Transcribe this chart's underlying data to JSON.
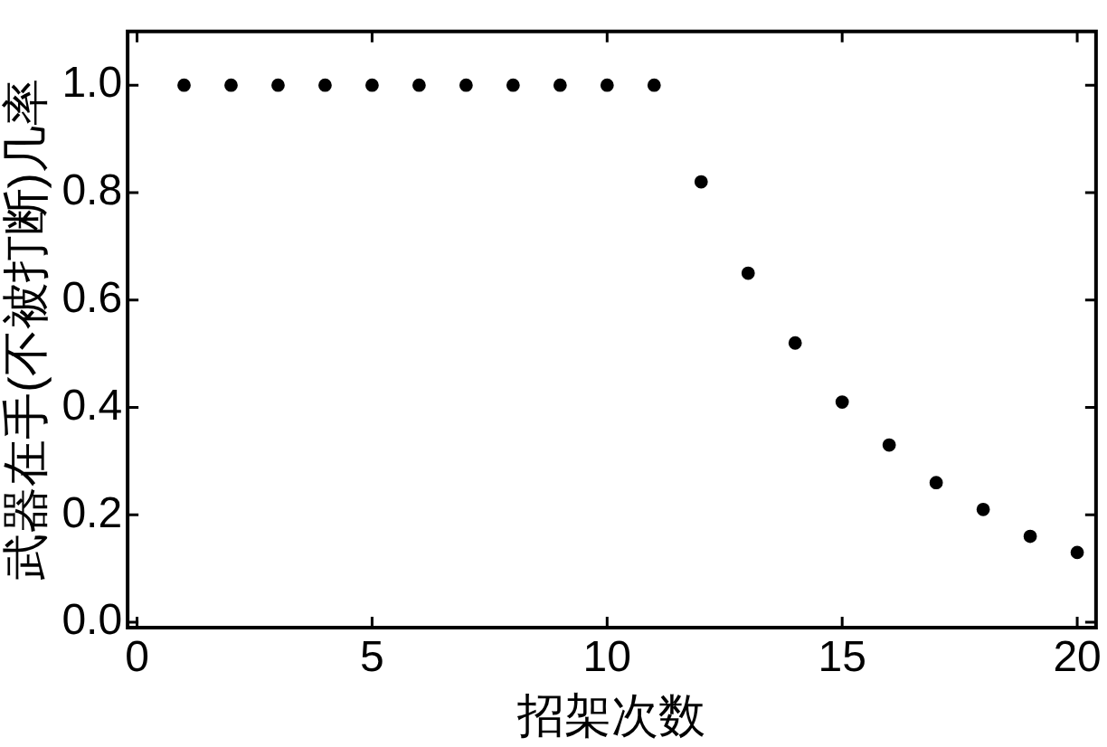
{
  "chart_data": {
    "type": "scatter",
    "xlabel": "招架次数",
    "ylabel": "武器在手(不被打断)几率",
    "x": [
      1,
      2,
      3,
      4,
      5,
      6,
      7,
      8,
      9,
      10,
      11,
      12,
      13,
      14,
      15,
      16,
      17,
      18,
      19,
      20
    ],
    "values": [
      1,
      1,
      1,
      1,
      1,
      1,
      1,
      1,
      1,
      1,
      1,
      0.82,
      0.65,
      0.52,
      0.41,
      0.33,
      0.26,
      0.21,
      0.16,
      0.13
    ],
    "color": "#000000",
    "marker": "circle",
    "xlim": [
      -0.2,
      20.4
    ],
    "xticks": [
      0,
      5,
      10,
      15,
      20
    ],
    "ylim": [
      -0.01,
      1.1
    ],
    "yticks": [
      {
        "value": 0,
        "label": "0.0"
      },
      {
        "value": 0.2,
        "label": "0.2"
      },
      {
        "value": 0.4,
        "label": "0.4"
      },
      {
        "value": 0.6,
        "label": "0.6"
      },
      {
        "value": 0.8,
        "label": "0.8"
      },
      {
        "value": 1,
        "label": "1.0"
      }
    ],
    "grid": false,
    "legend": false
  }
}
